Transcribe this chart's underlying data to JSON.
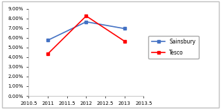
{
  "x": [
    2011,
    2012,
    2013
  ],
  "sainsbury": [
    0.0575,
    0.0765,
    0.0695
  ],
  "tesco": [
    0.0435,
    0.0825,
    0.0565
  ],
  "sainsbury_label": "Sainsbury",
  "tesco_label": "Tesco",
  "sainsbury_color": "#4472C4",
  "tesco_color": "#FF0000",
  "xlim": [
    2010.5,
    2013.5
  ],
  "ylim": [
    0.0,
    0.09
  ],
  "yticks": [
    0.0,
    0.01,
    0.02,
    0.03,
    0.04,
    0.05,
    0.06,
    0.07,
    0.08,
    0.09
  ],
  "xticks": [
    2010.5,
    2011,
    2011.5,
    2012,
    2012.5,
    2013,
    2013.5
  ],
  "xtick_labels": [
    "2010.5",
    "2011",
    "2011.5",
    "2012",
    "2012.5",
    "2013",
    "2013.5"
  ],
  "background_color": "#ffffff",
  "outer_border_color": "#d0d0d0",
  "marker": "s",
  "markersize": 3.5,
  "linewidth": 1.2,
  "tick_fontsize": 5.0,
  "legend_fontsize": 5.5
}
